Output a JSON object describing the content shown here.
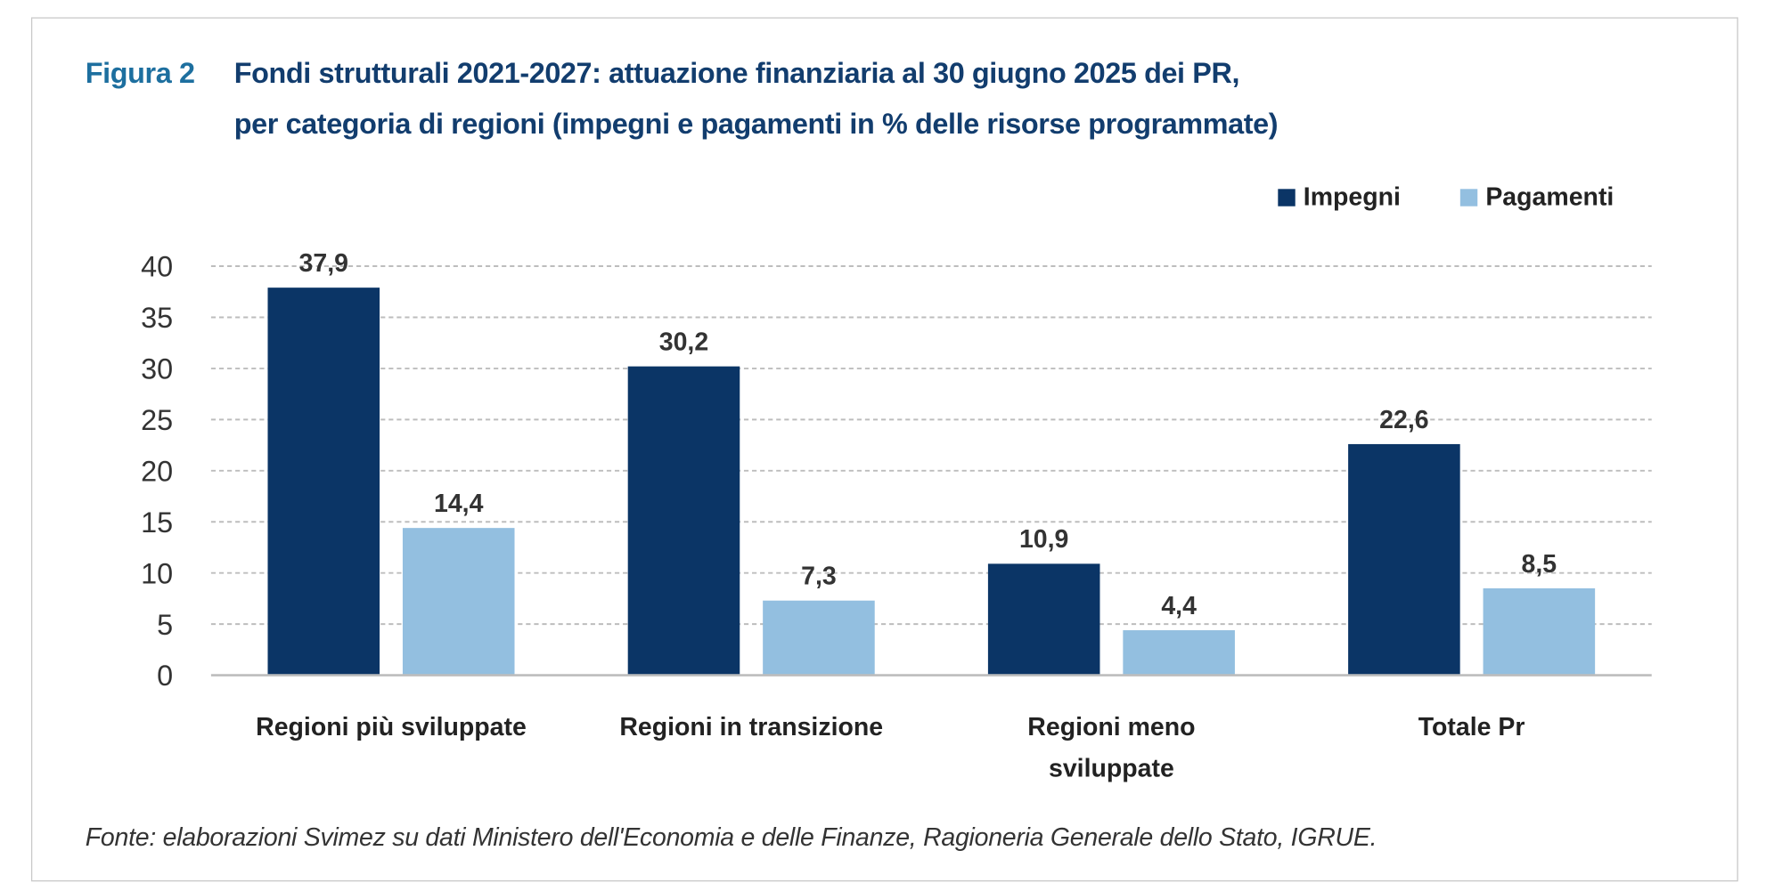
{
  "figure_number": "Figura 2",
  "title_line1": "Fondi strutturali 2021-2027: attuazione finanziaria al 30 giugno 2025 dei PR,",
  "title_line2": "per categoria di regioni (impegni e pagamenti in % delle risorse programmate)",
  "source": "Fonte: elaborazioni Svimez su dati Ministero dell'Economia e delle Finanze, Ragioneria Generale dello Stato, IGRUE.",
  "colors": {
    "impegni": "#0b3566",
    "pagamenti": "#93bfe0",
    "figure_number": "#1d6f9f",
    "title": "#123d6e"
  },
  "chart_data": {
    "type": "bar",
    "categories": [
      [
        "Regioni più sviluppate"
      ],
      [
        "Regioni in transizione"
      ],
      [
        "Regioni meno",
        "sviluppate"
      ],
      [
        "Totale Pr"
      ]
    ],
    "series": [
      {
        "name": "Impegni",
        "values": [
          37.9,
          30.2,
          10.9,
          22.6
        ],
        "labels": [
          "37,9",
          "30,2",
          "10,9",
          "22,6"
        ]
      },
      {
        "name": "Pagamenti",
        "values": [
          14.4,
          7.3,
          4.4,
          8.5
        ],
        "labels": [
          "14,4",
          "7,3",
          "4,4",
          "8,5"
        ]
      }
    ],
    "yticks": [
      0,
      5,
      10,
      15,
      20,
      25,
      30,
      35,
      40
    ],
    "ylim": [
      0,
      40
    ],
    "grid": "horizontal dashed",
    "legend": "top-right"
  }
}
